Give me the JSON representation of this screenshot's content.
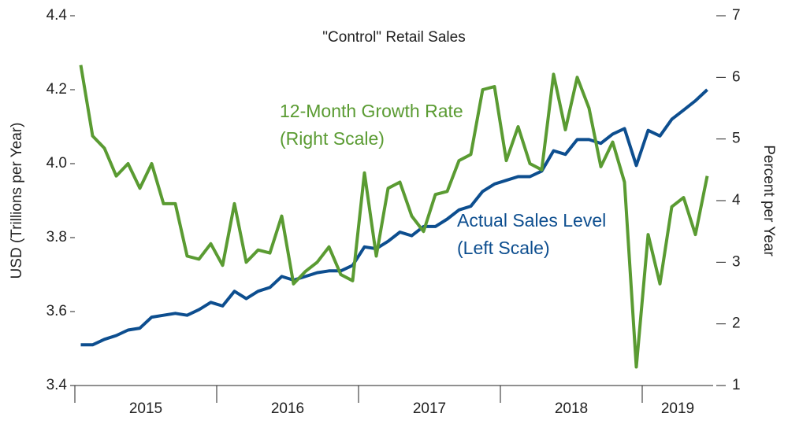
{
  "chart_data": {
    "type": "line",
    "title": "\"Control\" Retail Sales",
    "y_label": "USD (Trillions per Year)",
    "y2_label": "Percent per Year",
    "annotations": [
      "12-Month Growth Rate",
      "(Right Scale)",
      "Actual Sales Level",
      "(Left Scale)"
    ],
    "x": [
      0,
      1,
      2,
      3,
      4,
      5,
      6,
      7,
      8,
      9,
      10,
      11,
      12,
      13,
      14,
      15,
      16,
      17,
      18,
      19,
      20,
      21,
      22,
      23,
      24,
      25,
      26,
      27,
      28,
      29,
      30,
      31,
      32,
      33,
      34,
      35,
      36,
      37,
      38,
      39,
      40,
      41,
      42,
      43,
      44,
      45,
      46,
      47,
      48,
      49,
      50,
      51,
      52,
      53
    ],
    "xlim": [
      -0.5,
      53.5
    ],
    "xticks": [
      {
        "value": 5.5,
        "label": "2015"
      },
      {
        "value": 17.5,
        "label": "2016"
      },
      {
        "value": 29.5,
        "label": "2017"
      },
      {
        "value": 41.5,
        "label": "2018"
      },
      {
        "value": 50.5,
        "label": "2019"
      }
    ],
    "xminorticks": [
      -0.5,
      11.5,
      23.5,
      35.5,
      47.5
    ],
    "ylim": [
      3.4,
      4.4
    ],
    "yticks": [
      {
        "value": 3.4,
        "label": "3.4"
      },
      {
        "value": 3.6,
        "label": "3.6"
      },
      {
        "value": 3.8,
        "label": "3.8"
      },
      {
        "value": 4.0,
        "label": "4.0"
      },
      {
        "value": 4.2,
        "label": "4.2"
      },
      {
        "value": 4.4,
        "label": "4.4"
      }
    ],
    "y2lim": [
      1,
      7
    ],
    "y2ticks": [
      1,
      2,
      3,
      4,
      5,
      6,
      7
    ],
    "series": [
      {
        "name": "Actual Sales Level",
        "color": "#0d4e8f",
        "axis": "y",
        "values": [
          3.51,
          3.51,
          3.525,
          3.535,
          3.55,
          3.555,
          3.585,
          3.59,
          3.595,
          3.59,
          3.605,
          3.625,
          3.615,
          3.655,
          3.635,
          3.655,
          3.665,
          3.695,
          3.685,
          3.695,
          3.705,
          3.71,
          3.71,
          3.725,
          3.775,
          3.77,
          3.79,
          3.815,
          3.805,
          3.83,
          3.83,
          3.85,
          3.875,
          3.885,
          3.925,
          3.945,
          3.955,
          3.965,
          3.965,
          3.98,
          4.035,
          4.025,
          4.065,
          4.065,
          4.055,
          4.08,
          4.095,
          3.995,
          4.09,
          4.075,
          4.12,
          4.145,
          4.17,
          4.2
        ]
      },
      {
        "name": "12-Month Growth Rate",
        "color": "#5a9b32",
        "axis": "y2",
        "values": [
          6.2,
          5.05,
          4.85,
          4.4,
          4.6,
          4.2,
          4.6,
          3.95,
          3.95,
          3.1,
          3.05,
          3.3,
          2.95,
          3.95,
          3.0,
          3.2,
          3.15,
          3.75,
          2.65,
          2.85,
          3.0,
          3.25,
          2.8,
          2.7,
          4.45,
          3.1,
          4.2,
          4.3,
          3.75,
          3.5,
          4.1,
          4.15,
          4.65,
          4.75,
          5.8,
          5.85,
          4.65,
          5.2,
          4.6,
          4.5,
          6.05,
          5.15,
          6.0,
          5.5,
          4.55,
          4.95,
          4.3,
          1.3,
          3.45,
          2.65,
          3.9,
          4.05,
          3.45,
          4.4
        ]
      }
    ]
  }
}
